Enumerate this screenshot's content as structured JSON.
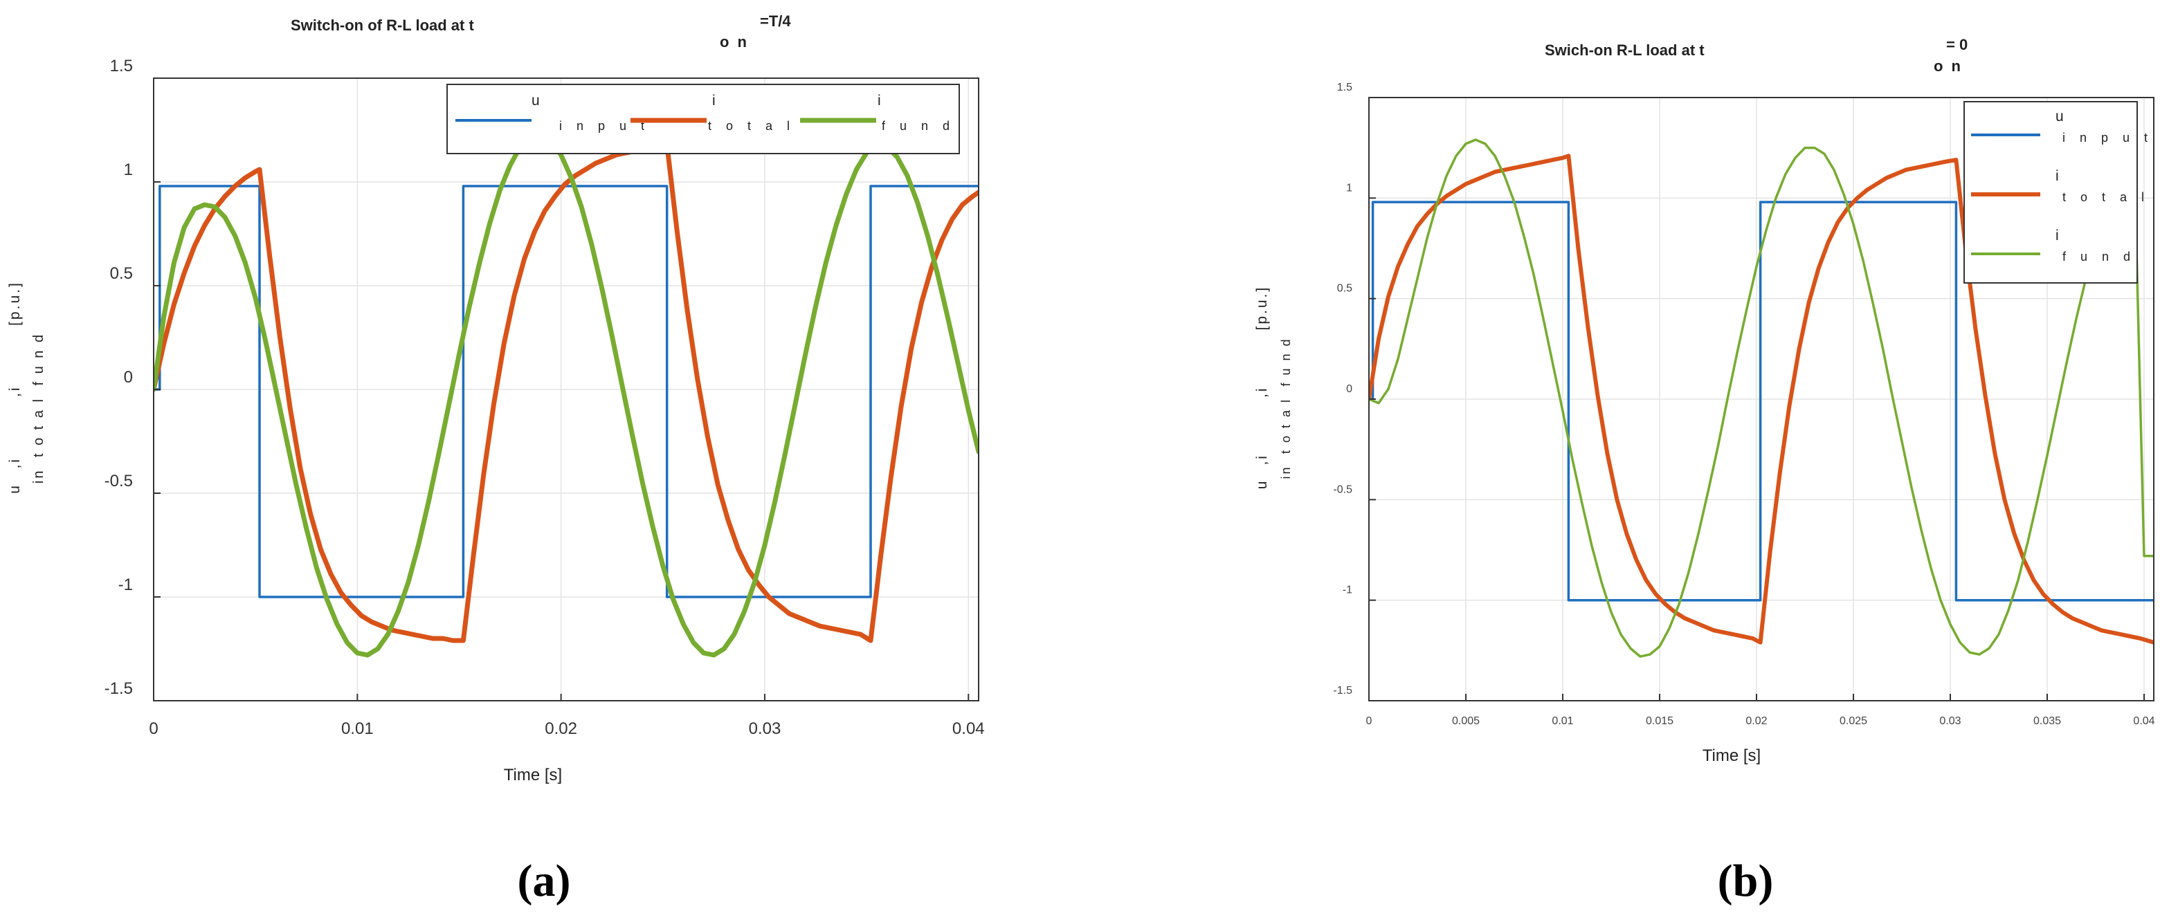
{
  "chart_data": [
    {
      "type": "line",
      "panel_label": "(a)",
      "title": "Switch-on of R-L load at t",
      "title_sub": "o n",
      "title_sup": "=T/4",
      "xlabel": "Time [s]",
      "ylabel": {
        "u": "u",
        "u_sub": "in",
        "sep1": ",i",
        "i1_sub": "t o t a l",
        "sep2": ",i",
        "i2_sub": "f u n d",
        "unit": "[p.u.]"
      },
      "xlim": [
        0,
        0.0405
      ],
      "ylim": [
        -1.5,
        1.5
      ],
      "xticks": [
        0,
        0.01,
        0.02,
        0.03,
        0.04
      ],
      "xtick_labels": [
        "0",
        "0.01",
        "0.02",
        "0.03",
        "0.04"
      ],
      "yticks": [
        -1.5,
        -1,
        -0.5,
        0,
        0.5,
        1,
        1.5
      ],
      "ytick_labels": [
        "-1.5",
        "-1",
        "-0.5",
        "0",
        "0.5",
        "1",
        "1.5"
      ],
      "grid": true,
      "legend_position": "top-right",
      "legend_orientation": "horizontal",
      "line_weight": "thick",
      "series": [
        {
          "name": "u",
          "name_sub": "i n p u t",
          "color": "#1f6fbf",
          "x": [
            0,
            0.0003,
            0.0003,
            0.0052,
            0.0052,
            0.0152,
            0.0152,
            0.0252,
            0.0252,
            0.0352,
            0.0352,
            0.0405
          ],
          "y": [
            0,
            0,
            0.98,
            0.98,
            -1.0,
            -1.0,
            0.98,
            0.98,
            -1.0,
            -1.0,
            0.98,
            0.98
          ]
        },
        {
          "name": "i",
          "name_sub": "t o t a l",
          "color": "#d95319",
          "x": [
            0,
            0.0005,
            0.001,
            0.0015,
            0.002,
            0.0025,
            0.003,
            0.0035,
            0.004,
            0.0045,
            0.005,
            0.0052,
            0.0057,
            0.0062,
            0.0067,
            0.0072,
            0.0077,
            0.0082,
            0.0087,
            0.0092,
            0.0097,
            0.0102,
            0.0107,
            0.0112,
            0.0117,
            0.0122,
            0.0127,
            0.0132,
            0.0137,
            0.0142,
            0.0147,
            0.0152,
            0.0157,
            0.0162,
            0.0167,
            0.0172,
            0.0177,
            0.0182,
            0.0187,
            0.0192,
            0.0197,
            0.0202,
            0.0207,
            0.0212,
            0.0217,
            0.0222,
            0.0227,
            0.0232,
            0.0237,
            0.0242,
            0.0247,
            0.0252,
            0.0257,
            0.0262,
            0.0267,
            0.0272,
            0.0277,
            0.0282,
            0.0287,
            0.0292,
            0.0297,
            0.0302,
            0.0307,
            0.0312,
            0.0317,
            0.0322,
            0.0327,
            0.0332,
            0.0337,
            0.0342,
            0.0347,
            0.0352,
            0.0357,
            0.0362,
            0.0367,
            0.0372,
            0.0377,
            0.0382,
            0.0387,
            0.0392,
            0.0397,
            0.0402,
            0.0405
          ],
          "y": [
            0,
            0.22,
            0.41,
            0.56,
            0.69,
            0.79,
            0.87,
            0.93,
            0.98,
            1.02,
            1.05,
            1.06,
            0.64,
            0.25,
            -0.09,
            -0.38,
            -0.6,
            -0.77,
            -0.89,
            -0.98,
            -1.04,
            -1.09,
            -1.12,
            -1.14,
            -1.16,
            -1.17,
            -1.18,
            -1.19,
            -1.2,
            -1.2,
            -1.21,
            -1.21,
            -0.8,
            -0.41,
            -0.07,
            0.22,
            0.45,
            0.63,
            0.76,
            0.86,
            0.93,
            0.99,
            1.03,
            1.06,
            1.09,
            1.11,
            1.13,
            1.14,
            1.15,
            1.16,
            1.17,
            1.18,
            0.76,
            0.38,
            0.05,
            -0.23,
            -0.46,
            -0.63,
            -0.77,
            -0.87,
            -0.94,
            -1.0,
            -1.04,
            -1.08,
            -1.1,
            -1.12,
            -1.14,
            -1.15,
            -1.16,
            -1.17,
            -1.18,
            -1.21,
            -0.8,
            -0.42,
            -0.08,
            0.2,
            0.42,
            0.59,
            0.72,
            0.82,
            0.89,
            0.93,
            0.95
          ]
        },
        {
          "name": "i",
          "name_sub": "f u n d",
          "color": "#77ac30",
          "x": [
            0,
            0.0005,
            0.001,
            0.0015,
            0.002,
            0.0025,
            0.003,
            0.0035,
            0.004,
            0.0045,
            0.005,
            0.0055,
            0.006,
            0.0065,
            0.007,
            0.0075,
            0.008,
            0.0085,
            0.009,
            0.0095,
            0.01,
            0.0105,
            0.011,
            0.0115,
            0.012,
            0.0125,
            0.013,
            0.0135,
            0.014,
            0.0145,
            0.015,
            0.0155,
            0.016,
            0.0165,
            0.017,
            0.0175,
            0.018,
            0.0185,
            0.019,
            0.0195,
            0.02,
            0.0205,
            0.021,
            0.0215,
            0.022,
            0.0225,
            0.023,
            0.0235,
            0.024,
            0.0245,
            0.025,
            0.0255,
            0.026,
            0.0265,
            0.027,
            0.0275,
            0.028,
            0.0285,
            0.029,
            0.0295,
            0.03,
            0.0305,
            0.031,
            0.0315,
            0.032,
            0.0325,
            0.033,
            0.0335,
            0.034,
            0.0345,
            0.035,
            0.0355,
            0.036,
            0.0365,
            0.037,
            0.0375,
            0.038,
            0.0385,
            0.039,
            0.0395,
            0.04,
            0.0405
          ],
          "y": [
            0,
            0.35,
            0.61,
            0.78,
            0.87,
            0.89,
            0.88,
            0.83,
            0.74,
            0.61,
            0.44,
            0.23,
            0.0,
            -0.23,
            -0.46,
            -0.67,
            -0.86,
            -1.01,
            -1.13,
            -1.22,
            -1.27,
            -1.28,
            -1.25,
            -1.18,
            -1.07,
            -0.93,
            -0.75,
            -0.54,
            -0.31,
            -0.07,
            0.17,
            0.4,
            0.61,
            0.8,
            0.96,
            1.08,
            1.17,
            1.22,
            1.23,
            1.2,
            1.13,
            1.02,
            0.88,
            0.7,
            0.49,
            0.26,
            0.02,
            -0.22,
            -0.45,
            -0.66,
            -0.85,
            -1.01,
            -1.13,
            -1.22,
            -1.27,
            -1.28,
            -1.25,
            -1.18,
            -1.07,
            -0.93,
            -0.75,
            -0.54,
            -0.31,
            -0.07,
            0.17,
            0.4,
            0.61,
            0.79,
            0.94,
            1.06,
            1.14,
            1.18,
            1.17,
            1.12,
            1.03,
            0.9,
            0.74,
            0.55,
            0.34,
            0.12,
            -0.1,
            -0.3
          ]
        }
      ]
    },
    {
      "type": "line",
      "panel_label": "(b)",
      "title": "Swich-on R-L load at t",
      "title_sub": "o n",
      "title_sup": "= 0",
      "xlabel": "Time [s]",
      "ylabel": {
        "u": "u",
        "u_sub": "in",
        "sep1": ",i",
        "i1_sub": "t o t a l",
        "sep2": ",i",
        "i2_sub": "f u n d",
        "unit": "[p.u.]"
      },
      "xlim": [
        0,
        0.0405
      ],
      "ylim": [
        -1.5,
        1.5
      ],
      "xticks": [
        0,
        0.005,
        0.01,
        0.015,
        0.02,
        0.025,
        0.03,
        0.035,
        0.04
      ],
      "xtick_labels": [
        "0",
        "0.005",
        "0.01",
        "0.015",
        "0.02",
        "0.025",
        "0.03",
        "0.035",
        "0.04"
      ],
      "yticks": [
        -1.5,
        -1,
        -0.5,
        0,
        0.5,
        1,
        1.5
      ],
      "ytick_labels": [
        "-1.5",
        "-1",
        "-0.5",
        "0",
        "0.5",
        "1",
        "1.5"
      ],
      "grid": true,
      "legend_position": "top-right",
      "legend_orientation": "vertical",
      "line_weight": "mixed",
      "series": [
        {
          "name": "u",
          "name_sub": "i n p u t",
          "color": "#1f6fbf",
          "width": 3.5,
          "x": [
            0,
            0.0002,
            0.0002,
            0.0103,
            0.0103,
            0.0202,
            0.0202,
            0.0303,
            0.0303,
            0.0405
          ],
          "y": [
            0,
            0,
            0.98,
            0.98,
            -1.0,
            -1.0,
            0.98,
            0.98,
            -1.0,
            -1.0
          ]
        },
        {
          "name": "i",
          "name_sub": "t o t a l",
          "color": "#d95319",
          "width": 6,
          "x": [
            0,
            0.0005,
            0.001,
            0.0015,
            0.002,
            0.0025,
            0.003,
            0.0035,
            0.004,
            0.0045,
            0.005,
            0.0055,
            0.006,
            0.0065,
            0.007,
            0.0075,
            0.008,
            0.0085,
            0.009,
            0.0095,
            0.01,
            0.0103,
            0.0108,
            0.0113,
            0.0118,
            0.0123,
            0.0128,
            0.0133,
            0.0138,
            0.0143,
            0.0148,
            0.0153,
            0.0158,
            0.0163,
            0.0168,
            0.0173,
            0.0178,
            0.0183,
            0.0188,
            0.0193,
            0.0198,
            0.0202,
            0.0207,
            0.0212,
            0.0217,
            0.0222,
            0.0227,
            0.0232,
            0.0237,
            0.0242,
            0.0247,
            0.0252,
            0.0257,
            0.0262,
            0.0267,
            0.0272,
            0.0277,
            0.0282,
            0.0287,
            0.0292,
            0.0297,
            0.0303,
            0.0308,
            0.0313,
            0.0318,
            0.0323,
            0.0328,
            0.0333,
            0.0338,
            0.0343,
            0.0348,
            0.0353,
            0.0358,
            0.0363,
            0.0368,
            0.0373,
            0.0378,
            0.0383,
            0.0388,
            0.0393,
            0.0398,
            0.0405
          ],
          "y": [
            0,
            0.3,
            0.51,
            0.66,
            0.77,
            0.86,
            0.92,
            0.97,
            1.01,
            1.04,
            1.07,
            1.09,
            1.11,
            1.13,
            1.14,
            1.15,
            1.16,
            1.17,
            1.18,
            1.19,
            1.2,
            1.21,
            0.75,
            0.36,
            0.02,
            -0.27,
            -0.5,
            -0.67,
            -0.8,
            -0.9,
            -0.97,
            -1.02,
            -1.06,
            -1.09,
            -1.11,
            -1.13,
            -1.15,
            -1.16,
            -1.17,
            -1.18,
            -1.19,
            -1.21,
            -0.76,
            -0.37,
            -0.03,
            0.25,
            0.48,
            0.65,
            0.78,
            0.88,
            0.95,
            1.0,
            1.04,
            1.07,
            1.1,
            1.12,
            1.14,
            1.15,
            1.16,
            1.17,
            1.18,
            1.19,
            0.74,
            0.35,
            0.02,
            -0.27,
            -0.5,
            -0.67,
            -0.8,
            -0.9,
            -0.97,
            -1.02,
            -1.06,
            -1.09,
            -1.11,
            -1.13,
            -1.15,
            -1.16,
            -1.17,
            -1.18,
            -1.19,
            -1.21
          ]
        },
        {
          "name": "i",
          "name_sub": "f u n d",
          "color": "#77ac30",
          "width": 3.5,
          "x": [
            0,
            0.0005,
            0.001,
            0.0015,
            0.002,
            0.0025,
            0.003,
            0.0035,
            0.004,
            0.0045,
            0.005,
            0.0055,
            0.006,
            0.0065,
            0.007,
            0.0075,
            0.008,
            0.0085,
            0.009,
            0.0095,
            0.01,
            0.0105,
            0.011,
            0.0115,
            0.012,
            0.0125,
            0.013,
            0.0135,
            0.014,
            0.0145,
            0.015,
            0.0155,
            0.016,
            0.0165,
            0.017,
            0.0175,
            0.018,
            0.0185,
            0.019,
            0.0195,
            0.02,
            0.0205,
            0.021,
            0.0215,
            0.022,
            0.0225,
            0.023,
            0.0235,
            0.024,
            0.0245,
            0.025,
            0.0255,
            0.026,
            0.0265,
            0.027,
            0.0275,
            0.028,
            0.0285,
            0.029,
            0.0295,
            0.03,
            0.0305,
            0.031,
            0.0315,
            0.032,
            0.0325,
            0.033,
            0.0335,
            0.034,
            0.0345,
            0.035,
            0.0355,
            0.036,
            0.0365,
            0.037,
            0.0375,
            0.038,
            0.0385,
            0.039,
            0.0395,
            0.04,
            0.0405
          ],
          "y": [
            0,
            -0.02,
            0.05,
            0.2,
            0.4,
            0.6,
            0.8,
            0.97,
            1.11,
            1.21,
            1.27,
            1.29,
            1.27,
            1.21,
            1.11,
            0.98,
            0.81,
            0.62,
            0.4,
            0.17,
            -0.06,
            -0.3,
            -0.52,
            -0.73,
            -0.91,
            -1.06,
            -1.17,
            -1.24,
            -1.28,
            -1.27,
            -1.23,
            -1.14,
            -1.02,
            -0.86,
            -0.67,
            -0.46,
            -0.24,
            0.0,
            0.23,
            0.45,
            0.66,
            0.84,
            1.0,
            1.12,
            1.2,
            1.25,
            1.25,
            1.22,
            1.14,
            1.02,
            0.87,
            0.69,
            0.48,
            0.26,
            0.02,
            -0.21,
            -0.44,
            -0.65,
            -0.84,
            -1.0,
            -1.12,
            -1.21,
            -1.26,
            -1.27,
            -1.24,
            -1.17,
            -1.05,
            -0.9,
            -0.71,
            -0.5,
            -0.28,
            -0.05,
            0.18,
            0.4,
            0.6,
            0.78,
            0.93,
            1.05,
            1.13,
            1.17,
            -0.78,
            -0.78
          ]
        }
      ]
    }
  ]
}
